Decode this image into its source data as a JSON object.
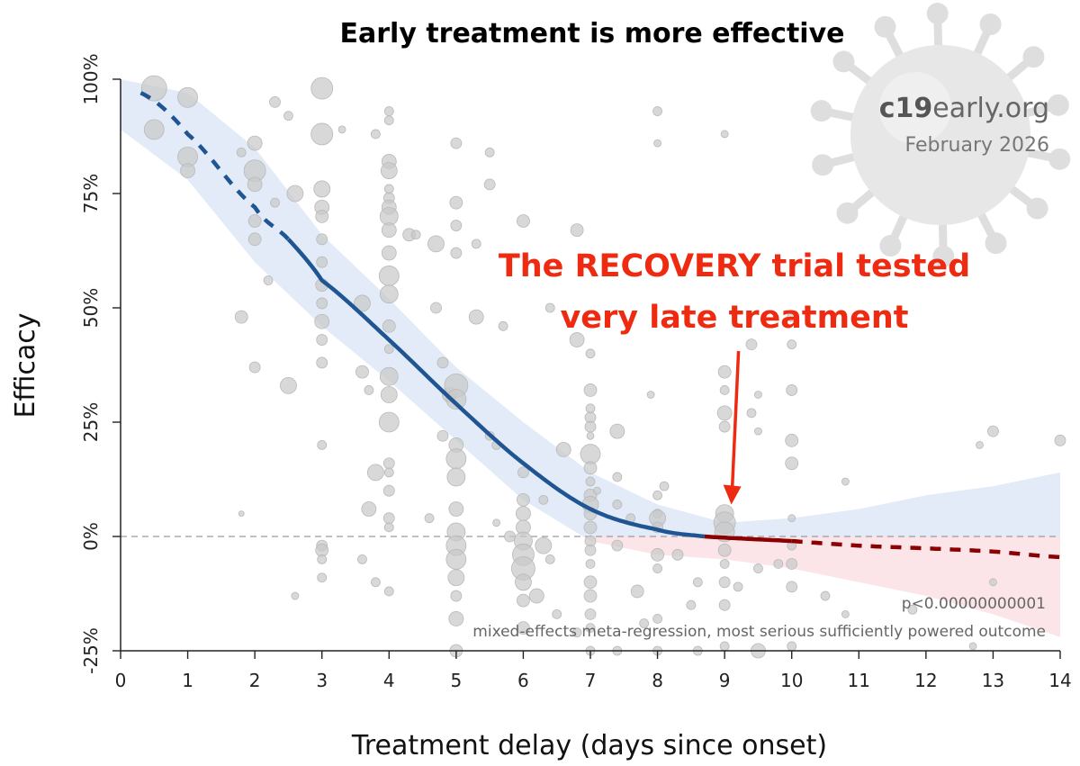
{
  "chart_data": {
    "type": "scatter",
    "title": "Early treatment is more effective",
    "xlabel": "Treatment delay (days since onset)",
    "ylabel": "Efficacy",
    "xlim": [
      0,
      14
    ],
    "ylim": [
      -25,
      100
    ],
    "x_ticks": [
      "0",
      "1",
      "2",
      "3",
      "4",
      "5",
      "6",
      "7",
      "8",
      "9",
      "10",
      "11",
      "12",
      "13",
      "14"
    ],
    "y_ticks": [
      {
        "value": 100,
        "label": "100%"
      },
      {
        "value": 75,
        "label": "75%"
      },
      {
        "value": 50,
        "label": "50%"
      },
      {
        "value": 25,
        "label": "25%"
      },
      {
        "value": 0,
        "label": "0%"
      },
      {
        "value": -25,
        "label": "-25%"
      }
    ],
    "reference_line": {
      "y": 0,
      "style": "dashed"
    },
    "regression_curve": {
      "x": [
        0.3,
        1,
        2,
        2.5,
        3,
        4,
        5,
        6,
        7,
        8,
        8.7,
        10,
        11,
        12,
        13,
        14
      ],
      "y": [
        97,
        88,
        72,
        65,
        56,
        43,
        29,
        16,
        6,
        1.5,
        0,
        -1,
        -2,
        -2.6,
        -3.3,
        -4.5
      ],
      "solid_range": [
        2.5,
        10
      ],
      "positive_color": "#1f5592",
      "negative_color": "#8b0000"
    },
    "confidence_band": {
      "x": [
        0,
        1,
        2,
        3,
        4,
        5,
        6,
        7,
        8,
        9,
        10,
        11,
        12,
        13,
        14
      ],
      "upper": [
        100,
        97,
        85,
        66,
        52,
        37,
        25,
        14,
        7,
        3,
        4,
        6,
        9,
        11,
        14
      ],
      "lower": [
        89,
        78,
        60,
        46,
        34,
        21,
        8,
        -1,
        -4,
        -5,
        -7,
        -10,
        -13,
        -17,
        -22
      ],
      "color_positive": "#e3ebf8",
      "color_negative": "#fbe5e9"
    },
    "studies": [
      {
        "x": 0.5,
        "y": 98,
        "s": 14
      },
      {
        "x": 1,
        "y": 96,
        "s": 11
      },
      {
        "x": 0.5,
        "y": 89,
        "s": 11
      },
      {
        "x": 1,
        "y": 83,
        "s": 11
      },
      {
        "x": 1,
        "y": 80,
        "s": 8
      },
      {
        "x": 2,
        "y": 86,
        "s": 8
      },
      {
        "x": 2,
        "y": 80,
        "s": 12
      },
      {
        "x": 2,
        "y": 77,
        "s": 8
      },
      {
        "x": 1.8,
        "y": 84,
        "s": 5
      },
      {
        "x": 2.3,
        "y": 73,
        "s": 5
      },
      {
        "x": 2,
        "y": 69,
        "s": 7
      },
      {
        "x": 2,
        "y": 65,
        "s": 7
      },
      {
        "x": 2.2,
        "y": 56,
        "s": 5
      },
      {
        "x": 1.8,
        "y": 48,
        "s": 7
      },
      {
        "x": 2,
        "y": 37,
        "s": 6
      },
      {
        "x": 2.5,
        "y": 33,
        "s": 9
      },
      {
        "x": 1.8,
        "y": 5,
        "s": 3
      },
      {
        "x": 2.3,
        "y": 95,
        "s": 6
      },
      {
        "x": 2.5,
        "y": 92,
        "s": 5
      },
      {
        "x": 3,
        "y": 98,
        "s": 12
      },
      {
        "x": 2.6,
        "y": 75,
        "s": 9
      },
      {
        "x": 3,
        "y": 88,
        "s": 12
      },
      {
        "x": 3,
        "y": 76,
        "s": 9
      },
      {
        "x": 3,
        "y": 72,
        "s": 8
      },
      {
        "x": 3,
        "y": 70,
        "s": 7
      },
      {
        "x": 3,
        "y": 65,
        "s": 6
      },
      {
        "x": 3,
        "y": 60,
        "s": 6
      },
      {
        "x": 3,
        "y": 55,
        "s": 7
      },
      {
        "x": 3,
        "y": 51,
        "s": 6
      },
      {
        "x": 3,
        "y": 47,
        "s": 8
      },
      {
        "x": 3,
        "y": 43,
        "s": 6
      },
      {
        "x": 3,
        "y": 38,
        "s": 6
      },
      {
        "x": 3,
        "y": 20,
        "s": 5
      },
      {
        "x": 3,
        "y": -2,
        "s": 6
      },
      {
        "x": 3,
        "y": -3,
        "s": 7
      },
      {
        "x": 3,
        "y": -5,
        "s": 5
      },
      {
        "x": 3,
        "y": -9,
        "s": 5
      },
      {
        "x": 2.6,
        "y": -13,
        "s": 4
      },
      {
        "x": 3.3,
        "y": 89,
        "s": 4
      },
      {
        "x": 3.6,
        "y": 51,
        "s": 9
      },
      {
        "x": 3.6,
        "y": 36,
        "s": 7
      },
      {
        "x": 3.7,
        "y": 6,
        "s": 8
      },
      {
        "x": 3.6,
        "y": -5,
        "s": 5
      },
      {
        "x": 3.8,
        "y": -10,
        "s": 5
      },
      {
        "x": 3.8,
        "y": 88,
        "s": 5
      },
      {
        "x": 4,
        "y": 93,
        "s": 5
      },
      {
        "x": 4,
        "y": 91,
        "s": 5
      },
      {
        "x": 4,
        "y": 82,
        "s": 8
      },
      {
        "x": 4,
        "y": 80,
        "s": 9
      },
      {
        "x": 4,
        "y": 76,
        "s": 5
      },
      {
        "x": 4,
        "y": 74,
        "s": 6
      },
      {
        "x": 4,
        "y": 72,
        "s": 8
      },
      {
        "x": 4,
        "y": 70,
        "s": 10
      },
      {
        "x": 4,
        "y": 67,
        "s": 8
      },
      {
        "x": 4,
        "y": 62,
        "s": 8
      },
      {
        "x": 4,
        "y": 57,
        "s": 11
      },
      {
        "x": 4,
        "y": 53,
        "s": 10
      },
      {
        "x": 4,
        "y": 46,
        "s": 7
      },
      {
        "x": 4,
        "y": 41,
        "s": 5
      },
      {
        "x": 4,
        "y": 35,
        "s": 10
      },
      {
        "x": 4,
        "y": 31,
        "s": 9
      },
      {
        "x": 4,
        "y": 25,
        "s": 11
      },
      {
        "x": 4,
        "y": 16,
        "s": 6
      },
      {
        "x": 4,
        "y": 14,
        "s": 5
      },
      {
        "x": 4,
        "y": 10,
        "s": 6
      },
      {
        "x": 4,
        "y": 4,
        "s": 6
      },
      {
        "x": 4,
        "y": 2,
        "s": 5
      },
      {
        "x": 4,
        "y": -12,
        "s": 5
      },
      {
        "x": 3.8,
        "y": 14,
        "s": 9
      },
      {
        "x": 3.7,
        "y": 32,
        "s": 5
      },
      {
        "x": 4.3,
        "y": 66,
        "s": 7
      },
      {
        "x": 4.4,
        "y": 66,
        "s": 5
      },
      {
        "x": 4.7,
        "y": 64,
        "s": 9
      },
      {
        "x": 4.7,
        "y": 50,
        "s": 6
      },
      {
        "x": 4.8,
        "y": 38,
        "s": 6
      },
      {
        "x": 4.9,
        "y": 31,
        "s": 8
      },
      {
        "x": 4.8,
        "y": 22,
        "s": 6
      },
      {
        "x": 4.6,
        "y": 4,
        "s": 5
      },
      {
        "x": 5,
        "y": 86,
        "s": 6
      },
      {
        "x": 5,
        "y": 73,
        "s": 7
      },
      {
        "x": 5,
        "y": 68,
        "s": 6
      },
      {
        "x": 5,
        "y": 62,
        "s": 6
      },
      {
        "x": 5,
        "y": 33,
        "s": 13
      },
      {
        "x": 5,
        "y": 30,
        "s": 11
      },
      {
        "x": 5,
        "y": 20,
        "s": 8
      },
      {
        "x": 5,
        "y": 17,
        "s": 11
      },
      {
        "x": 5,
        "y": 13,
        "s": 10
      },
      {
        "x": 5,
        "y": 6,
        "s": 8
      },
      {
        "x": 5,
        "y": 1,
        "s": 10
      },
      {
        "x": 5,
        "y": -2,
        "s": 11
      },
      {
        "x": 5,
        "y": -5,
        "s": 11
      },
      {
        "x": 5,
        "y": -9,
        "s": 9
      },
      {
        "x": 5,
        "y": -13,
        "s": 6
      },
      {
        "x": 5,
        "y": -18,
        "s": 8
      },
      {
        "x": 5,
        "y": -25,
        "s": 7
      },
      {
        "x": 5.3,
        "y": 64,
        "s": 5
      },
      {
        "x": 5.3,
        "y": 48,
        "s": 8
      },
      {
        "x": 5.5,
        "y": 77,
        "s": 6
      },
      {
        "x": 5.5,
        "y": 84,
        "s": 5
      },
      {
        "x": 5.5,
        "y": 22,
        "s": 5
      },
      {
        "x": 5.6,
        "y": 20,
        "s": 5
      },
      {
        "x": 5.6,
        "y": 3,
        "s": 4
      },
      {
        "x": 5.7,
        "y": 46,
        "s": 5
      },
      {
        "x": 5.8,
        "y": 0,
        "s": 6
      },
      {
        "x": 6,
        "y": 69,
        "s": 7
      },
      {
        "x": 6,
        "y": 14,
        "s": 6
      },
      {
        "x": 6,
        "y": 8,
        "s": 7
      },
      {
        "x": 6,
        "y": 5,
        "s": 8
      },
      {
        "x": 6,
        "y": 2,
        "s": 8
      },
      {
        "x": 6,
        "y": -1,
        "s": 10
      },
      {
        "x": 6,
        "y": -4,
        "s": 12
      },
      {
        "x": 6,
        "y": -7,
        "s": 13
      },
      {
        "x": 6,
        "y": -10,
        "s": 9
      },
      {
        "x": 6,
        "y": -14,
        "s": 7
      },
      {
        "x": 6,
        "y": -20,
        "s": 7
      },
      {
        "x": 6.3,
        "y": -2,
        "s": 9
      },
      {
        "x": 6.4,
        "y": -5,
        "s": 5
      },
      {
        "x": 6.6,
        "y": 19,
        "s": 8
      },
      {
        "x": 6.3,
        "y": 8,
        "s": 5
      },
      {
        "x": 6.4,
        "y": 50,
        "s": 5
      },
      {
        "x": 6.2,
        "y": -13,
        "s": 8
      },
      {
        "x": 6.8,
        "y": 67,
        "s": 7
      },
      {
        "x": 6.8,
        "y": 43,
        "s": 8
      },
      {
        "x": 7,
        "y": 40,
        "s": 5
      },
      {
        "x": 7,
        "y": 32,
        "s": 7
      },
      {
        "x": 7,
        "y": 28,
        "s": 5
      },
      {
        "x": 7,
        "y": 26,
        "s": 6
      },
      {
        "x": 7,
        "y": 24,
        "s": 6
      },
      {
        "x": 7,
        "y": 22,
        "s": 4
      },
      {
        "x": 7,
        "y": 18,
        "s": 11
      },
      {
        "x": 7,
        "y": 15,
        "s": 7
      },
      {
        "x": 7,
        "y": 12,
        "s": 5
      },
      {
        "x": 7,
        "y": 9,
        "s": 7
      },
      {
        "x": 7,
        "y": 7,
        "s": 9
      },
      {
        "x": 7,
        "y": 5,
        "s": 7
      },
      {
        "x": 7,
        "y": 2,
        "s": 7
      },
      {
        "x": 7,
        "y": -1,
        "s": 6
      },
      {
        "x": 7,
        "y": -3,
        "s": 6
      },
      {
        "x": 7,
        "y": -6,
        "s": 5
      },
      {
        "x": 7,
        "y": -10,
        "s": 7
      },
      {
        "x": 7,
        "y": -13,
        "s": 7
      },
      {
        "x": 7,
        "y": -17,
        "s": 6
      },
      {
        "x": 7,
        "y": -20,
        "s": 5
      },
      {
        "x": 7,
        "y": -25,
        "s": 5
      },
      {
        "x": 6.5,
        "y": -17,
        "s": 5
      },
      {
        "x": 6.8,
        "y": -21,
        "s": 5
      },
      {
        "x": 7.1,
        "y": 10,
        "s": 4
      },
      {
        "x": 7.4,
        "y": 23,
        "s": 8
      },
      {
        "x": 7.4,
        "y": 13,
        "s": 5
      },
      {
        "x": 7.4,
        "y": 7,
        "s": 5
      },
      {
        "x": 7.4,
        "y": -2,
        "s": 6
      },
      {
        "x": 7.4,
        "y": -25,
        "s": 5
      },
      {
        "x": 7.6,
        "y": 4,
        "s": 5
      },
      {
        "x": 7.8,
        "y": -19,
        "s": 5
      },
      {
        "x": 7.7,
        "y": -12,
        "s": 7
      },
      {
        "x": 8,
        "y": 93,
        "s": 5
      },
      {
        "x": 8,
        "y": 86,
        "s": 4
      },
      {
        "x": 8,
        "y": 9,
        "s": 5
      },
      {
        "x": 8,
        "y": 5,
        "s": 5
      },
      {
        "x": 8,
        "y": 4,
        "s": 9
      },
      {
        "x": 8,
        "y": 2,
        "s": 6
      },
      {
        "x": 8,
        "y": -4,
        "s": 7
      },
      {
        "x": 8,
        "y": -7,
        "s": 5
      },
      {
        "x": 8,
        "y": -18,
        "s": 5
      },
      {
        "x": 8,
        "y": -25,
        "s": 5
      },
      {
        "x": 7.9,
        "y": 31,
        "s": 4
      },
      {
        "x": 8.1,
        "y": 11,
        "s": 5
      },
      {
        "x": 8.3,
        "y": -4,
        "s": 6
      },
      {
        "x": 8.6,
        "y": -10,
        "s": 5
      },
      {
        "x": 8.5,
        "y": -15,
        "s": 5
      },
      {
        "x": 8.6,
        "y": -25,
        "s": 5
      },
      {
        "x": 9,
        "y": 88,
        "s": 4
      },
      {
        "x": 9,
        "y": 36,
        "s": 7
      },
      {
        "x": 9,
        "y": 32,
        "s": 5
      },
      {
        "x": 9,
        "y": 27,
        "s": 8
      },
      {
        "x": 9,
        "y": 24,
        "s": 6
      },
      {
        "x": 9,
        "y": 5,
        "s": 10
      },
      {
        "x": 9,
        "y": 3,
        "s": 12
      },
      {
        "x": 9,
        "y": 1,
        "s": 11
      },
      {
        "x": 9,
        "y": -3,
        "s": 7
      },
      {
        "x": 9,
        "y": -6,
        "s": 5
      },
      {
        "x": 9,
        "y": -10,
        "s": 6
      },
      {
        "x": 9,
        "y": -15,
        "s": 6
      },
      {
        "x": 9,
        "y": -24,
        "s": 5
      },
      {
        "x": 9.4,
        "y": 42,
        "s": 6
      },
      {
        "x": 9.4,
        "y": 27,
        "s": 5
      },
      {
        "x": 9.5,
        "y": 31,
        "s": 4
      },
      {
        "x": 9.5,
        "y": 23,
        "s": 4
      },
      {
        "x": 9.5,
        "y": -7,
        "s": 5
      },
      {
        "x": 9.2,
        "y": -11,
        "s": 5
      },
      {
        "x": 9.5,
        "y": -25,
        "s": 8
      },
      {
        "x": 9.8,
        "y": -6,
        "s": 5
      },
      {
        "x": 10,
        "y": 48,
        "s": 5
      },
      {
        "x": 10,
        "y": 42,
        "s": 5
      },
      {
        "x": 10,
        "y": 32,
        "s": 6
      },
      {
        "x": 10,
        "y": 21,
        "s": 7
      },
      {
        "x": 10,
        "y": 16,
        "s": 7
      },
      {
        "x": 10,
        "y": 4,
        "s": 4
      },
      {
        "x": 10,
        "y": -2,
        "s": 5
      },
      {
        "x": 10,
        "y": -6,
        "s": 6
      },
      {
        "x": 10,
        "y": -11,
        "s": 6
      },
      {
        "x": 10,
        "y": -24,
        "s": 5
      },
      {
        "x": 10.5,
        "y": -13,
        "s": 5
      },
      {
        "x": 10.8,
        "y": -17,
        "s": 4
      },
      {
        "x": 10.8,
        "y": 12,
        "s": 4
      },
      {
        "x": 11.8,
        "y": -16,
        "s": 5
      },
      {
        "x": 12.8,
        "y": 20,
        "s": 4
      },
      {
        "x": 13,
        "y": 23,
        "s": 6
      },
      {
        "x": 13,
        "y": -10,
        "s": 4
      },
      {
        "x": 14,
        "y": 21,
        "s": 6
      },
      {
        "x": 12.7,
        "y": -24,
        "s": 4
      }
    ],
    "annotation": {
      "lines": [
        "The RECOVERY trial tested",
        "very late treatment"
      ],
      "arrow_to": {
        "x": 9.1,
        "y": 7
      },
      "color": "#ee2a10"
    },
    "brand": {
      "domain_a": "c19",
      "domain_b": "early.org",
      "date": "February 2026"
    },
    "footnote": {
      "pvalue": "p<0.00000000001",
      "method": "mixed-effects meta-regression, most serious sufficiently powered outcome"
    },
    "colors": {
      "dots": "#c9c9c9",
      "dots_stroke": "#b9b9b9",
      "zero_line": "#9a9a9a",
      "virus": "#dedede"
    }
  }
}
